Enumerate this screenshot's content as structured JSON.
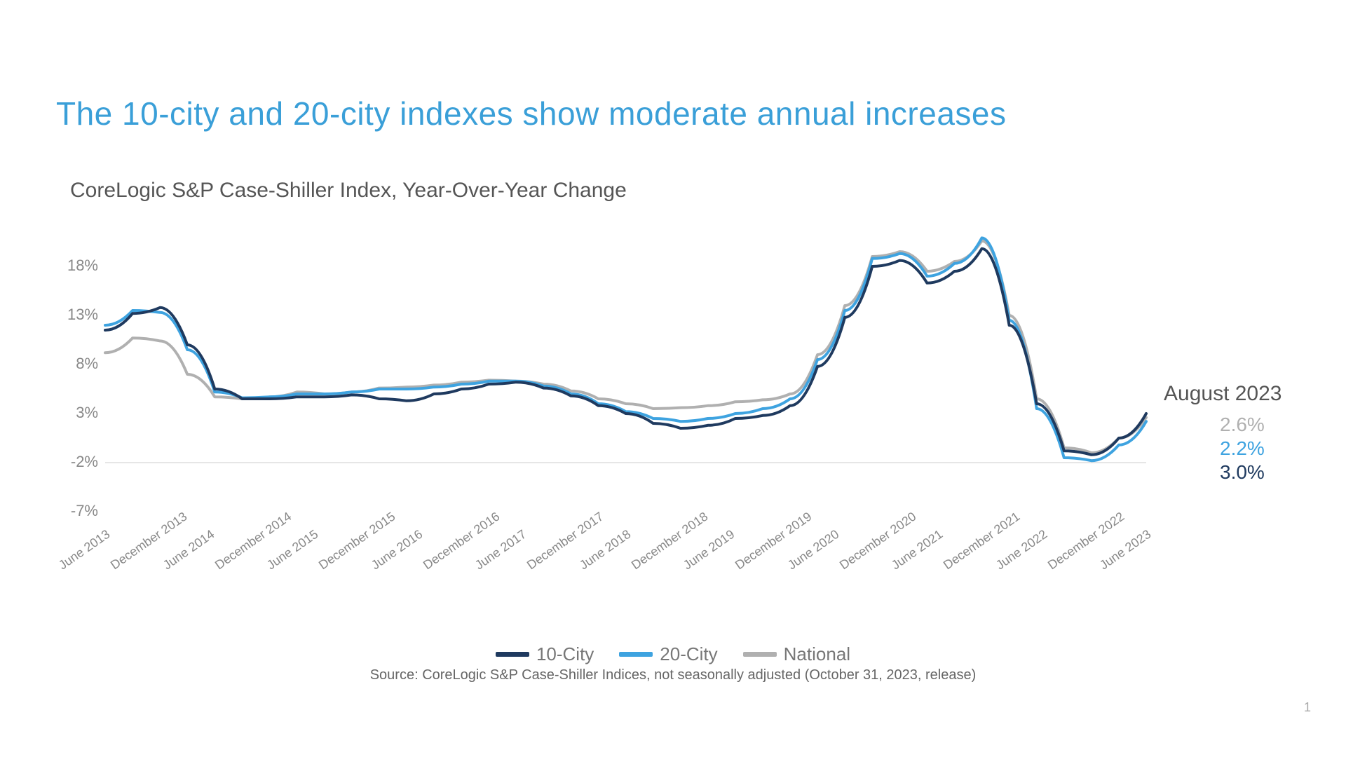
{
  "title": {
    "text": "The 10-city and 20-city indexes show moderate annual increases",
    "color": "#3a9fd8",
    "fontsize": 46
  },
  "subtitle": "CoreLogic S&P Case-Shiller Index, Year-Over-Year Change",
  "chart": {
    "type": "line",
    "ylim": [
      -7,
      23
    ],
    "ytick_vals": [
      -7,
      -2,
      3,
      8,
      13,
      18
    ],
    "ytick_labels": [
      "-7%",
      "-2%",
      "3%",
      "8%",
      "13%",
      "18%"
    ],
    "grid_color": "#e5e5e5",
    "axis_color": "#cccccc",
    "background_color": "#ffffff",
    "line_width": 4,
    "x_categories": [
      "June 2013",
      "December 2013",
      "June 2014",
      "December 2014",
      "June 2015",
      "December 2015",
      "June 2016",
      "December 2016",
      "June 2017",
      "December 2017",
      "June 2018",
      "December 2018",
      "June 2019",
      "December 2019",
      "June 2020",
      "December 2020",
      "June 2021",
      "December 2021",
      "June 2022",
      "December 2022",
      "June 2023"
    ],
    "series": [
      {
        "name": "National",
        "color": "#b0b0b0",
        "values_per_halfyear": [
          9.2,
          10.7,
          10.4,
          7.0,
          4.7,
          4.5,
          4.7,
          5.2,
          5.0,
          5.2,
          5.6,
          5.7,
          5.9,
          6.2,
          6.4,
          6.3,
          6.0,
          5.3,
          4.5,
          4.0,
          3.5,
          3.6,
          3.8,
          4.2,
          4.4,
          5.0,
          9.0,
          14.0,
          19.0,
          19.5,
          17.5,
          18.5,
          20.6,
          13.0,
          4.5,
          -0.5,
          -1.0,
          0.5,
          2.6
        ]
      },
      {
        "name": "20-City",
        "color": "#3ea3e0",
        "values_per_halfyear": [
          12.0,
          13.5,
          13.3,
          9.5,
          5.2,
          4.6,
          4.7,
          5.0,
          5.0,
          5.2,
          5.5,
          5.5,
          5.7,
          6.0,
          6.3,
          6.3,
          5.8,
          5.0,
          4.0,
          3.2,
          2.5,
          2.2,
          2.5,
          3.0,
          3.5,
          4.5,
          8.5,
          13.5,
          18.8,
          19.3,
          17.0,
          18.3,
          20.9,
          12.5,
          3.5,
          -1.5,
          -1.8,
          -0.2,
          2.2
        ]
      },
      {
        "name": "10-City",
        "color": "#1f3a5f",
        "values_per_halfyear": [
          11.5,
          13.2,
          13.8,
          10.0,
          5.5,
          4.5,
          4.5,
          4.7,
          4.7,
          4.9,
          4.5,
          4.3,
          5.0,
          5.5,
          6.0,
          6.2,
          5.6,
          4.8,
          3.8,
          3.0,
          2.0,
          1.5,
          1.8,
          2.5,
          2.8,
          3.8,
          7.8,
          12.8,
          18.0,
          18.6,
          16.3,
          17.5,
          19.8,
          12.0,
          4.0,
          -0.8,
          -1.2,
          0.5,
          3.0
        ]
      }
    ]
  },
  "callout": {
    "title": "August 2023",
    "values": [
      {
        "series": "National",
        "text": "2.6%",
        "color": "#b0b0b0"
      },
      {
        "series": "20-City",
        "text": "2.2%",
        "color": "#3ea3e0"
      },
      {
        "series": "10-City",
        "text": "3.0%",
        "color": "#1f3a5f"
      }
    ]
  },
  "legend": [
    {
      "label": "10-City",
      "color": "#1f3a5f"
    },
    {
      "label": "20-City",
      "color": "#3ea3e0"
    },
    {
      "label": "National",
      "color": "#b0b0b0"
    }
  ],
  "source": "Source: CoreLogic S&P Case-Shiller Indices, not seasonally adjusted (October 31, 2023, release)",
  "page_number": "1"
}
